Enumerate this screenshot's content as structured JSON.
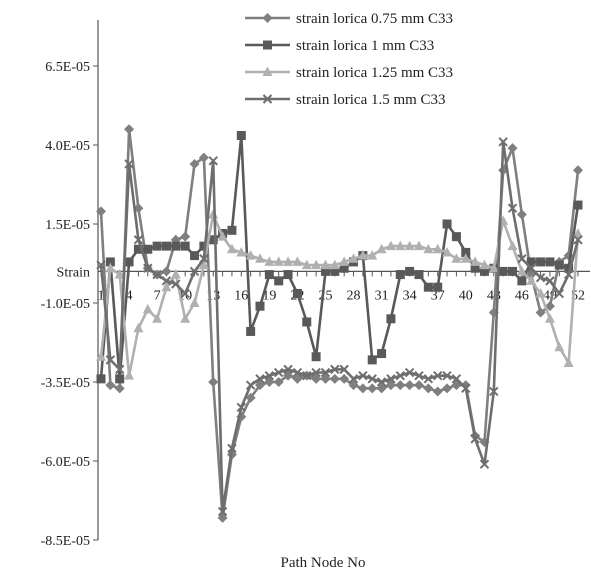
{
  "chart_data": {
    "type": "line",
    "title": "",
    "xlabel": "Path Node No",
    "ylabel": "Strain",
    "ylim": [
      -8.5e-05,
      8.5e-05
    ],
    "xlim": [
      1,
      52
    ],
    "y_ticks": [
      6.5e-05,
      4e-05,
      1.5e-05,
      -1e-05,
      -3.5e-05,
      -6e-05,
      -8.5e-05
    ],
    "y_tick_labels": [
      "6.5E-05",
      "4.0E-05",
      "1.5E-05",
      "-1.0E-05",
      "-3.5E-05",
      "-6.0E-05",
      "-8.5E-05"
    ],
    "x_tick_labels": [
      "1",
      "4",
      "7",
      "10",
      "13",
      "16",
      "19",
      "22",
      "25",
      "28",
      "31",
      "34",
      "37",
      "40",
      "43",
      "46",
      "49",
      "52"
    ],
    "legend_position": "top-right",
    "grid": false,
    "x": [
      1,
      2,
      3,
      4,
      5,
      6,
      7,
      8,
      9,
      10,
      11,
      12,
      13,
      14,
      15,
      16,
      17,
      18,
      19,
      20,
      21,
      22,
      23,
      24,
      25,
      26,
      27,
      28,
      29,
      30,
      31,
      32,
      33,
      34,
      35,
      36,
      37,
      38,
      39,
      40,
      41,
      42,
      43,
      44,
      45,
      46,
      47,
      48,
      49,
      50,
      51,
      52
    ],
    "series": [
      {
        "name": "strain lorica 0.75 mm C33",
        "color": "#7f7f7f",
        "marker": "diamond",
        "values": [
          1.9e-05,
          -3.6e-05,
          -3.7e-05,
          4.5e-05,
          2e-05,
          1e-06,
          -1e-06,
          0.0,
          1e-05,
          1.1e-05,
          3.4e-05,
          3.6e-05,
          -3.5e-05,
          -7.8e-05,
          -5.8e-05,
          -4.6e-05,
          -4e-05,
          -3.6e-05,
          -3.5e-05,
          -3.5e-05,
          -3.3e-05,
          -3.4e-05,
          -3.3e-05,
          -3.4e-05,
          -3.4e-05,
          -3.4e-05,
          -3.4e-05,
          -3.6e-05,
          -3.7e-05,
          -3.7e-05,
          -3.7e-05,
          -3.6e-05,
          -3.6e-05,
          -3.6e-05,
          -3.6e-05,
          -3.7e-05,
          -3.8e-05,
          -3.7e-05,
          -3.6e-05,
          -3.6e-05,
          -5.2e-05,
          -5.4e-05,
          -1.3e-05,
          3.2e-05,
          3.9e-05,
          1.8e-05,
          -1e-06,
          -1.3e-05,
          -1.1e-05,
          3e-06,
          5e-06,
          3.2e-05
        ]
      },
      {
        "name": "strain lorica 1 mm C33",
        "color": "#595959",
        "marker": "square",
        "values": [
          -3.4e-05,
          3e-06,
          -3.4e-05,
          3e-06,
          7e-06,
          7e-06,
          8e-06,
          8e-06,
          8e-06,
          8e-06,
          5e-06,
          8e-06,
          1e-05,
          1.2e-05,
          1.3e-05,
          4.3e-05,
          -1.9e-05,
          -1.1e-05,
          -1e-06,
          -3e-06,
          -1e-06,
          -7e-06,
          -1.6e-05,
          -2.7e-05,
          0.0,
          0.0,
          1e-06,
          3e-06,
          5e-06,
          -2.8e-05,
          -2.6e-05,
          -1.5e-05,
          -1e-06,
          0.0,
          -1e-06,
          -5e-06,
          -5e-06,
          1.5e-05,
          1.1e-05,
          6e-06,
          1e-06,
          0.0,
          1e-06,
          0.0,
          0.0,
          -3e-06,
          3e-06,
          3e-06,
          3e-06,
          2e-06,
          1e-06,
          2.1e-05
        ]
      },
      {
        "name": "strain lorica 1.25 mm C33",
        "color": "#b0b0b0",
        "marker": "triangle",
        "values": [
          -2.7e-05,
          1e-06,
          -1e-06,
          -3.3e-05,
          -1.8e-05,
          -1.2e-05,
          -1.5e-05,
          -5e-06,
          -1e-06,
          -1.5e-05,
          -1e-05,
          2e-06,
          1.8e-05,
          1.1e-05,
          7e-06,
          6e-06,
          5e-06,
          4e-06,
          3e-06,
          3e-06,
          3e-06,
          3e-06,
          2e-06,
          2e-06,
          2e-06,
          2e-06,
          3e-06,
          4e-06,
          5e-06,
          5e-06,
          7e-06,
          8e-06,
          8e-06,
          8e-06,
          8e-06,
          7e-06,
          7e-06,
          6e-06,
          4e-06,
          4e-06,
          3e-06,
          2e-06,
          1e-06,
          1.6e-05,
          8e-06,
          0.0,
          -3e-06,
          -7e-06,
          -1.5e-05,
          -2.4e-05,
          -2.9e-05,
          1.2e-05
        ]
      },
      {
        "name": "strain lorica 1.5 mm C33",
        "color": "#6e6e6e",
        "marker": "x",
        "values": [
          2e-06,
          -2.8e-05,
          -3.1e-05,
          3.4e-05,
          1e-05,
          1e-06,
          -1e-06,
          -3e-06,
          -4e-06,
          -7e-06,
          0.0,
          4e-06,
          3.5e-05,
          -7.6e-05,
          -5.6e-05,
          -4.3e-05,
          -3.6e-05,
          -3.4e-05,
          -3.3e-05,
          -3.2e-05,
          -3.1e-05,
          -3.2e-05,
          -3.3e-05,
          -3.2e-05,
          -3.2e-05,
          -3.1e-05,
          -3.1e-05,
          -3.4e-05,
          -3.3e-05,
          -3.4e-05,
          -3.5e-05,
          -3.4e-05,
          -3.3e-05,
          -3.2e-05,
          -3.3e-05,
          -3.4e-05,
          -3.3e-05,
          -3.3e-05,
          -3.4e-05,
          -3.7e-05,
          -5.3e-05,
          -6.1e-05,
          -3.8e-05,
          4.1e-05,
          2e-05,
          4e-06,
          1e-06,
          -2e-06,
          -3e-06,
          -7e-06,
          -1e-06,
          1e-05
        ]
      }
    ]
  }
}
